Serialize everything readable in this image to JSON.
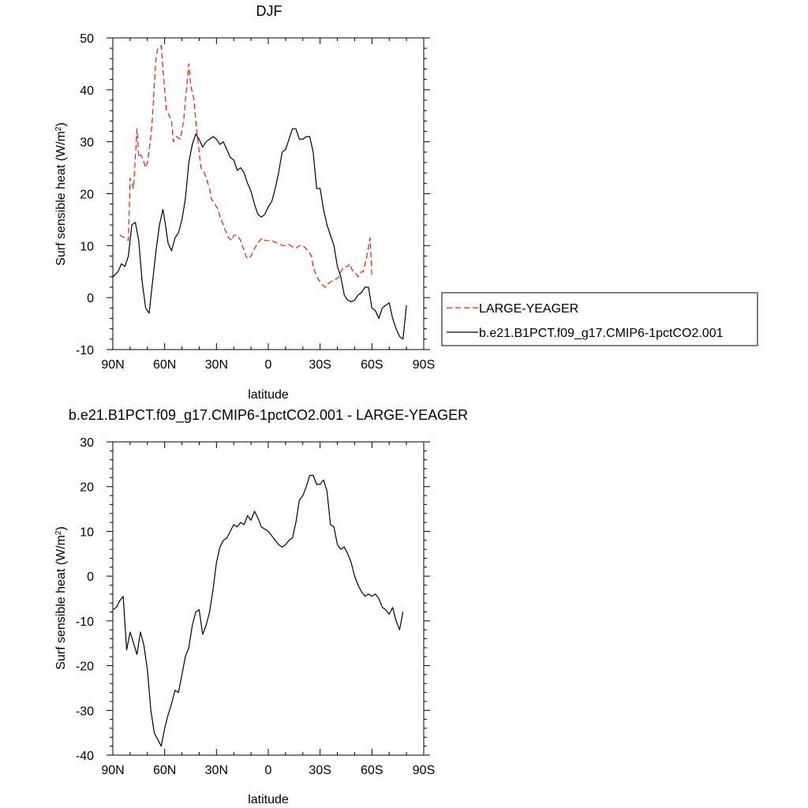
{
  "chart_data": [
    {
      "type": "line",
      "title": "DJF",
      "xlabel": "latitude",
      "ylabel": "Surf sensible heat (W/m²)",
      "ylabel_main": "Surf sensible heat (W/m",
      "ylabel_sup": "2",
      "ylabel_close": ")",
      "xlim": [
        90,
        -90
      ],
      "ylim": [
        -10,
        50
      ],
      "x_ticks": [
        {
          "value": 90,
          "label": "90N"
        },
        {
          "value": 60,
          "label": "60N"
        },
        {
          "value": 30,
          "label": "30N"
        },
        {
          "value": 0,
          "label": "0"
        },
        {
          "value": -30,
          "label": "30S"
        },
        {
          "value": -60,
          "label": "60S"
        },
        {
          "value": -90,
          "label": "90S"
        }
      ],
      "y_ticks": [
        -10,
        0,
        10,
        20,
        30,
        40,
        50
      ],
      "legend_placement": "right",
      "series": [
        {
          "name": "LARGE-YEAGER",
          "color": "#e8191f",
          "dash": "dashed",
          "x": [
            86,
            83,
            81,
            80,
            78,
            77,
            76,
            75,
            74,
            73,
            71,
            70,
            68,
            67,
            66,
            65,
            64,
            62,
            61,
            60,
            59,
            58,
            56,
            55,
            53,
            51,
            49,
            48,
            46,
            45,
            43,
            42,
            40,
            39,
            37,
            36,
            34,
            33,
            31,
            29,
            28,
            26,
            25,
            23,
            21,
            20,
            18,
            16,
            15,
            13,
            12,
            10,
            8,
            7,
            5,
            3,
            2,
            0,
            -2,
            -3,
            -5,
            -7,
            -8,
            -10,
            -12,
            -13,
            -15,
            -16,
            -18,
            -20,
            -21,
            -23,
            -25,
            -26,
            -28,
            -29,
            -31,
            -33,
            -34,
            -36,
            -38,
            -39,
            -41,
            -42,
            -44,
            -46,
            -47,
            -49,
            -51,
            -52,
            -54,
            -55,
            -57,
            -59,
            -60,
            -62,
            -63,
            -65,
            -67,
            -68,
            -70,
            -72,
            -73,
            -75,
            -76,
            -78,
            -79
          ],
          "y": [
            12,
            11.5,
            11,
            23,
            21,
            27,
            32.5,
            27,
            27.5,
            27,
            25,
            26,
            31,
            35,
            41,
            46,
            48,
            48.5,
            44,
            40,
            36,
            35.5,
            34,
            30,
            31,
            30.5,
            34,
            38,
            45,
            41,
            38,
            34,
            28,
            25,
            24,
            23,
            21,
            19,
            18,
            17,
            15.5,
            14,
            13,
            11.5,
            11,
            12,
            12,
            11,
            10,
            8,
            7.5,
            8,
            9.5,
            10,
            11,
            11.5,
            11,
            11,
            11,
            10.8,
            10.5,
            10.3,
            10,
            10,
            10.2,
            10,
            9.5,
            9.5,
            10,
            10,
            9.7,
            9,
            8,
            6,
            4,
            3.5,
            2.5,
            2,
            2.5,
            3,
            3.5,
            3.5,
            4,
            5,
            6,
            6,
            6.5,
            5,
            4.5,
            4,
            5,
            5,
            8,
            11.5,
            4,
            null,
            null,
            null,
            null,
            null,
            null,
            null,
            null,
            null,
            null,
            null,
            null
          ]
        },
        {
          "name": "b.e21.B1PCT.f09_g17.CMIP6-1pctCO2.001",
          "color": "#000000",
          "dash": "solid",
          "x": [
            90,
            87,
            85,
            83,
            81,
            79,
            77,
            75,
            73,
            71,
            69,
            67,
            65,
            63,
            61,
            60,
            58,
            56,
            54,
            52,
            50,
            48,
            46,
            44,
            42,
            40,
            38,
            36,
            34,
            32,
            30,
            28,
            26,
            24,
            22,
            20,
            18,
            16,
            14,
            12,
            10,
            8,
            6,
            4,
            2,
            0,
            -2,
            -4,
            -6,
            -8,
            -10,
            -12,
            -14,
            -16,
            -18,
            -20,
            -22,
            -24,
            -26,
            -28,
            -30,
            -32,
            -34,
            -36,
            -38,
            -40,
            -42,
            -44,
            -46,
            -48,
            -50,
            -52,
            -54,
            -56,
            -58,
            -60,
            -62,
            -64,
            -66,
            -68,
            -70,
            -72,
            -74,
            -76,
            -78,
            -80,
            -82,
            -84,
            -86,
            -88,
            -90
          ],
          "y": [
            4,
            5,
            6.5,
            6,
            8,
            14,
            14.5,
            11,
            3,
            -2,
            -3,
            3,
            9,
            14,
            17,
            15,
            10.5,
            9,
            11.5,
            12.5,
            15,
            19,
            26,
            29.5,
            31.5,
            30.5,
            29,
            30,
            30.5,
            31,
            30.5,
            29.5,
            30,
            28.5,
            27,
            26.5,
            24.5,
            25,
            24,
            22,
            20.5,
            18,
            16,
            15.5,
            16,
            17.5,
            18.5,
            21,
            24,
            28,
            28.5,
            30.5,
            32.5,
            32.5,
            30.5,
            30.5,
            31,
            31,
            28,
            21,
            21,
            17,
            14,
            12,
            10,
            6,
            4,
            0.5,
            -0.5,
            -0.8,
            -0.5,
            0.5,
            1,
            2,
            2,
            -2,
            -2.5,
            -4,
            -2,
            -1.5,
            -1,
            -4,
            -6,
            -7.5,
            -8,
            -1.5,
            null,
            null,
            null,
            null,
            null
          ]
        }
      ]
    },
    {
      "type": "line",
      "title": "b.e21.B1PCT.f09_g17.CMIP6-1pctCO2.001 - LARGE-YEAGER",
      "xlabel": "latitude",
      "ylabel": "Surf sensible heat (W/m²)",
      "ylabel_main": "Surf sensible heat (W/m",
      "ylabel_sup": "2",
      "ylabel_close": ")",
      "xlim": [
        90,
        -90
      ],
      "ylim": [
        -40,
        30
      ],
      "x_ticks": [
        {
          "value": 90,
          "label": "90N"
        },
        {
          "value": 60,
          "label": "60N"
        },
        {
          "value": 30,
          "label": "30N"
        },
        {
          "value": 0,
          "label": "0"
        },
        {
          "value": -30,
          "label": "30S"
        },
        {
          "value": -60,
          "label": "60S"
        },
        {
          "value": -90,
          "label": "90S"
        }
      ],
      "y_ticks": [
        -40,
        -30,
        -20,
        -10,
        0,
        10,
        20,
        30
      ],
      "series": [
        {
          "color": "#000000",
          "dash": "solid",
          "x": [
            90,
            88,
            86,
            84,
            82,
            80,
            78,
            76,
            74,
            72,
            70,
            68,
            66,
            64,
            62,
            60,
            58,
            56,
            54,
            52,
            50,
            48,
            46,
            44,
            42,
            40,
            38,
            36,
            34,
            32,
            30,
            28,
            26,
            24,
            22,
            20,
            18,
            16,
            14,
            12,
            10,
            8,
            6,
            4,
            2,
            0,
            -2,
            -4,
            -6,
            -8,
            -10,
            -12,
            -14,
            -16,
            -18,
            -20,
            -22,
            -24,
            -26,
            -28,
            -30,
            -32,
            -34,
            -36,
            -38,
            -40,
            -42,
            -44,
            -46,
            -48,
            -50,
            -52,
            -54,
            -56,
            -58,
            -60,
            -62,
            -64,
            -66,
            -68,
            -70,
            -72,
            -74,
            -76,
            -78,
            -79
          ],
          "y": [
            -7.5,
            -7,
            -5.5,
            -4.5,
            -16.5,
            -12.5,
            -15,
            -17.5,
            -12.5,
            -15.5,
            -21,
            -30,
            -35,
            -36.5,
            -38,
            -34,
            -31,
            -28.5,
            -25.5,
            -26,
            -22,
            -18,
            -16,
            -11,
            -8,
            -7.5,
            -13,
            -11,
            -8,
            -3,
            3,
            6.5,
            8,
            8.5,
            10,
            11.5,
            11,
            12,
            11.5,
            13.5,
            12.5,
            14.5,
            13,
            11,
            10.5,
            10,
            9,
            8,
            7,
            6.5,
            7,
            8,
            8.5,
            12,
            17,
            18,
            20,
            22.5,
            22.5,
            20.5,
            20.5,
            21.5,
            19,
            11.5,
            11,
            7,
            6,
            6.5,
            5,
            3,
            0,
            -2,
            -3.5,
            -4.5,
            -4,
            -4.5,
            -4,
            -5,
            -7,
            -7.5,
            -8.5,
            -7,
            -10,
            -12,
            -8,
            null
          ]
        }
      ]
    }
  ]
}
